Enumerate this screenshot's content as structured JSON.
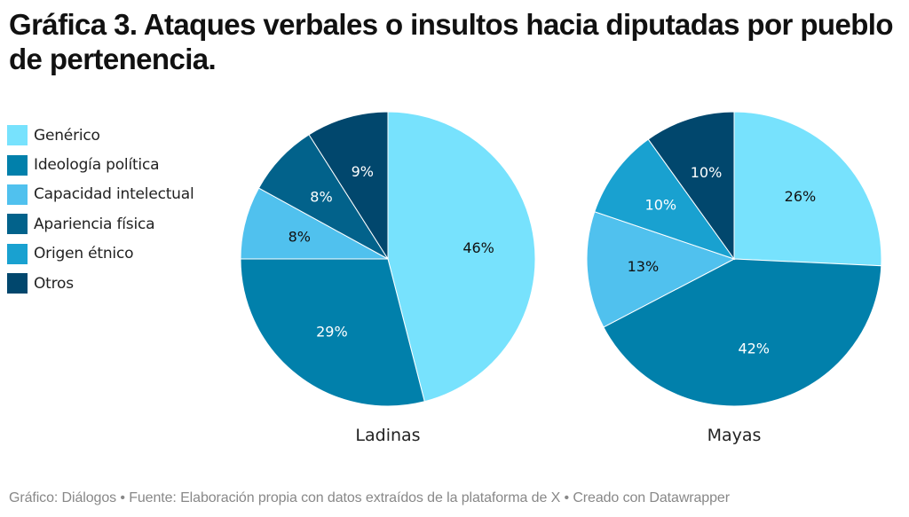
{
  "title": "Gráfica 3. Ataques verbales o insultos hacia diputadas por pueblo de pertenencia.",
  "footer": "Gráfico: Diálogos • Fuente: Elaboración propia con datos extraídos de la plataforma de X • Creado con Datawrapper",
  "chart_data": {
    "type": "pie",
    "title": "Gráfica 3. Ataques verbales o insultos hacia diputadas por pueblo de pertenencia.",
    "legend_position": "top-left",
    "categories": [
      "Genérico",
      "Ideología política",
      "Capacidad intelectual",
      "Apariencia física",
      "Origen étnico",
      "Otros"
    ],
    "colors": [
      "#77e2fd",
      "#0180ab",
      "#50c1ee",
      "#02628b",
      "#19a1d0",
      "#01476d"
    ],
    "label_colors": [
      "#111111",
      "#ffffff",
      "#111111",
      "#ffffff",
      "#ffffff",
      "#ffffff"
    ],
    "pies": [
      {
        "name": "Ladinas",
        "values": [
          46,
          29,
          8,
          8,
          0,
          9
        ],
        "labels": [
          "46%",
          "29%",
          "8%",
          "8%",
          "",
          "9%"
        ]
      },
      {
        "name": "Mayas",
        "values": [
          26,
          42,
          13,
          0,
          10,
          10
        ],
        "labels": [
          "26%",
          "42%",
          "13%",
          "",
          "10%",
          "10%"
        ]
      }
    ],
    "unit": "%"
  }
}
